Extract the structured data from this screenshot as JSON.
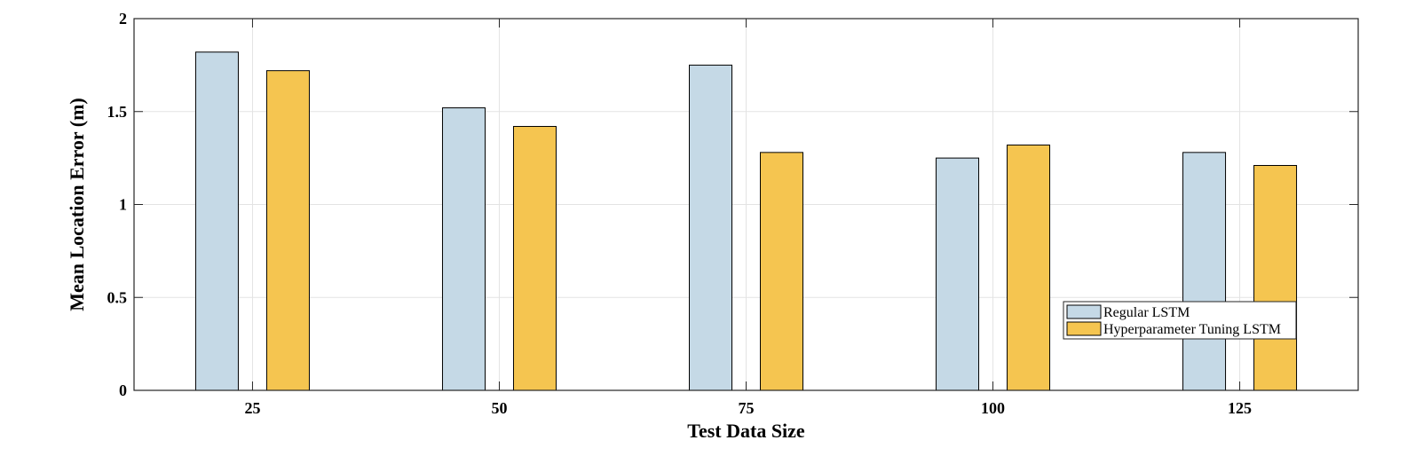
{
  "chart_data": {
    "type": "bar",
    "xlabel": "Test Data Size",
    "ylabel": "Mean Location Error (m)",
    "categories": [
      "25",
      "50",
      "75",
      "100",
      "125"
    ],
    "series": [
      {
        "name": "Regular LSTM",
        "color": "#c5d9e6",
        "values": [
          1.82,
          1.52,
          1.75,
          1.25,
          1.28
        ]
      },
      {
        "name": "Hyperparameter Tuning LSTM",
        "color": "#f5c550",
        "values": [
          1.72,
          1.42,
          1.28,
          1.32,
          1.21
        ]
      }
    ],
    "ylim": [
      0,
      2
    ],
    "yticks": [
      "0",
      "0.5",
      "1",
      "1.5",
      "2"
    ],
    "grid": true,
    "legend_position": "bottom-right"
  }
}
